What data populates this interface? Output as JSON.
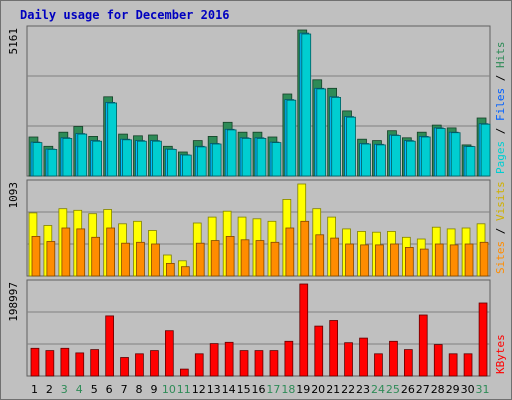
{
  "colors": {
    "background": "#c0c0c0",
    "title": "#0000c0",
    "pages": "#2e8b57",
    "files": "#00bfff",
    "hits": "#00ced1",
    "visits": "#ffff00",
    "sites": "#ff8c00",
    "kbytes": "#ff0000",
    "weekend_tick": "#2e8b57",
    "weekday_tick": "#000000"
  },
  "chart_data": [
    {
      "type": "bar",
      "panel": "hits-files-pages",
      "title": "Daily usage for December 2016",
      "ylabel": "5161",
      "legend": [
        "Pages",
        "Files",
        "Hits"
      ],
      "categories": [
        "1",
        "2",
        "3",
        "4",
        "5",
        "6",
        "7",
        "8",
        "9",
        "10",
        "11",
        "12",
        "13",
        "14",
        "15",
        "16",
        "17",
        "18",
        "19",
        "20",
        "21",
        "22",
        "23",
        "24",
        "25",
        "26",
        "27",
        "28",
        "29",
        "30",
        "31"
      ],
      "weekend_days": [
        "3",
        "4",
        "10",
        "11",
        "17",
        "18",
        "24",
        "25",
        "31"
      ],
      "ylim": [
        0,
        5161
      ],
      "series": [
        {
          "name": "Pages",
          "values": [
            1380,
            1050,
            1550,
            1750,
            1400,
            2800,
            1480,
            1420,
            1450,
            1050,
            850,
            1250,
            1400,
            1900,
            1550,
            1550,
            1380,
            2900,
            5161,
            3400,
            3100,
            2300,
            1300,
            1250,
            1600,
            1350,
            1550,
            1800,
            1700,
            1100,
            2050
          ]
        },
        {
          "name": "Files",
          "values": [
            1200,
            950,
            1350,
            1500,
            1250,
            2600,
            1300,
            1250,
            1250,
            950,
            750,
            1050,
            1150,
            1650,
            1350,
            1350,
            1200,
            2700,
            5050,
            3100,
            2800,
            2100,
            1150,
            1120,
            1450,
            1250,
            1400,
            1700,
            1550,
            1050,
            1850
          ]
        },
        {
          "name": "Hits",
          "values": [
            1180,
            940,
            1330,
            1480,
            1230,
            2580,
            1280,
            1230,
            1230,
            940,
            740,
            1030,
            1130,
            1630,
            1330,
            1330,
            1180,
            2680,
            5020,
            3080,
            2780,
            2080,
            1130,
            1100,
            1430,
            1230,
            1380,
            1680,
            1530,
            1040,
            1830
          ]
        }
      ]
    },
    {
      "type": "bar",
      "panel": "visits-sites",
      "ylabel": "1093",
      "legend": [
        "Sites",
        "Visits"
      ],
      "categories": [
        "1",
        "2",
        "3",
        "4",
        "5",
        "6",
        "7",
        "8",
        "9",
        "10",
        "11",
        "12",
        "13",
        "14",
        "15",
        "16",
        "17",
        "18",
        "19",
        "20",
        "21",
        "22",
        "23",
        "24",
        "25",
        "26",
        "27",
        "28",
        "29",
        "30",
        "31"
      ],
      "ylim": [
        0,
        1093
      ],
      "series": [
        {
          "name": "Visits",
          "values": [
            750,
            600,
            800,
            780,
            740,
            790,
            620,
            650,
            540,
            250,
            180,
            630,
            700,
            770,
            700,
            680,
            650,
            910,
            1093,
            800,
            700,
            560,
            530,
            520,
            530,
            460,
            440,
            580,
            560,
            570,
            620
          ]
        },
        {
          "name": "Sites",
          "values": [
            470,
            410,
            570,
            560,
            460,
            570,
            390,
            400,
            380,
            150,
            110,
            390,
            420,
            470,
            430,
            420,
            400,
            570,
            650,
            490,
            450,
            380,
            370,
            370,
            380,
            340,
            320,
            380,
            370,
            380,
            400
          ]
        }
      ]
    },
    {
      "type": "bar",
      "panel": "kbytes",
      "ylabel": "198997",
      "legend": [
        "KBytes"
      ],
      "categories": [
        "1",
        "2",
        "3",
        "4",
        "5",
        "6",
        "7",
        "8",
        "9",
        "10",
        "11",
        "12",
        "13",
        "14",
        "15",
        "16",
        "17",
        "18",
        "19",
        "20",
        "21",
        "22",
        "23",
        "24",
        "25",
        "26",
        "27",
        "28",
        "29",
        "30",
        "31"
      ],
      "ylim": [
        0,
        198997
      ],
      "series": [
        {
          "name": "KBytes",
          "values": [
            60000,
            55000,
            60000,
            50000,
            57000,
            130000,
            40000,
            48000,
            55000,
            98000,
            15000,
            48000,
            70000,
            73000,
            55000,
            55000,
            55000,
            75000,
            198997,
            108000,
            120000,
            72000,
            82000,
            48000,
            75000,
            57000,
            132000,
            68000,
            48000,
            48000,
            158000
          ]
        }
      ]
    }
  ]
}
